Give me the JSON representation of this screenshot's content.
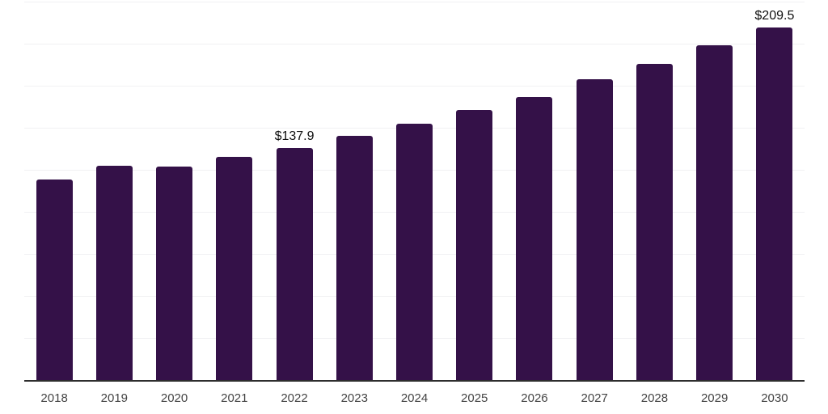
{
  "chart_data": {
    "type": "bar",
    "title": "",
    "xlabel": "",
    "ylabel": "",
    "categories": [
      "2018",
      "2019",
      "2020",
      "2021",
      "2022",
      "2023",
      "2024",
      "2025",
      "2026",
      "2027",
      "2028",
      "2029",
      "2030"
    ],
    "values": [
      119.4,
      127.4,
      127.0,
      132.7,
      137.9,
      145.2,
      152.3,
      160.4,
      168.5,
      179.0,
      188.2,
      199.0,
      209.5
    ],
    "data_labels": [
      {
        "category": "2022",
        "text": "$137.9"
      },
      {
        "category": "2030",
        "text": "$209.5"
      }
    ],
    "ylim": [
      0,
      225
    ],
    "grid_step": 25,
    "grid": "horizontal",
    "legend": "none",
    "colors": {
      "bar": "#341148",
      "gridline": "#f1f1f3",
      "axis_line": "#2e2e2e",
      "tick_label": "#444444",
      "data_label": "#0f0f0f"
    }
  }
}
